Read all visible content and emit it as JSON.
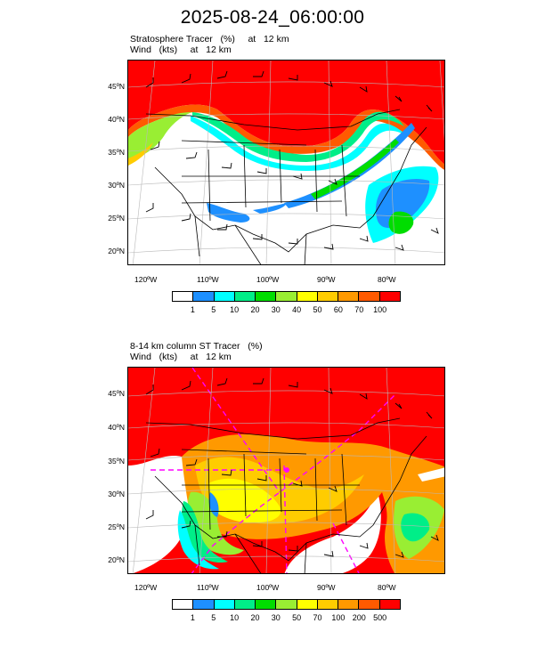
{
  "title": "2025-08-24_06:00:00",
  "colors": {
    "red": "#ff0000",
    "orange_red": "#ff5a00",
    "orange": "#ff9900",
    "gold": "#ffcc00",
    "yellow": "#ffff00",
    "yellow_green": "#99ee33",
    "green": "#00dd00",
    "sea_green": "#00ee88",
    "cyan": "#00ffff",
    "blue": "#1e90ff",
    "white": "#ffffff",
    "magenta": "#ff00ff"
  },
  "panels": [
    {
      "subtitle_line1": "Stratosphere Tracer   (%)     at   12 km",
      "subtitle_line2": "Wind   (kts)     at   12 km",
      "lat_labels": [
        "45ºN",
        "40ºN",
        "35ºN",
        "30ºN",
        "25ºN",
        "20ºN"
      ],
      "lon_labels": [
        "120ºW",
        "110ºW",
        "100ºW",
        "90ºW",
        "80ºW"
      ],
      "colorbar_labels": [
        "1",
        "5",
        "10",
        "20",
        "30",
        "40",
        "50",
        "60",
        "70",
        "100"
      ],
      "colorbar_colors": [
        "#ffffff",
        "#1e90ff",
        "#00ffff",
        "#00ee88",
        "#00dd00",
        "#99ee33",
        "#ffff00",
        "#ffcc00",
        "#ff9900",
        "#ff5a00",
        "#ff0000"
      ]
    },
    {
      "subtitle_line1": "8-14 km column ST Tracer   (%)",
      "subtitle_line2": "Wind   (kts)     at   12 km",
      "lat_labels": [
        "45ºN",
        "40ºN",
        "35ºN",
        "30ºN",
        "25ºN",
        "20ºN"
      ],
      "lon_labels": [
        "120ºW",
        "110ºW",
        "100ºW",
        "90ºW",
        "80ºW"
      ],
      "colorbar_labels": [
        "1",
        "5",
        "10",
        "20",
        "30",
        "50",
        "70",
        "100",
        "200",
        "500"
      ],
      "colorbar_colors": [
        "#ffffff",
        "#1e90ff",
        "#00ffff",
        "#00ee88",
        "#00dd00",
        "#99ee33",
        "#ffff00",
        "#ffcc00",
        "#ff9900",
        "#ff5a00",
        "#ff0000"
      ]
    }
  ]
}
